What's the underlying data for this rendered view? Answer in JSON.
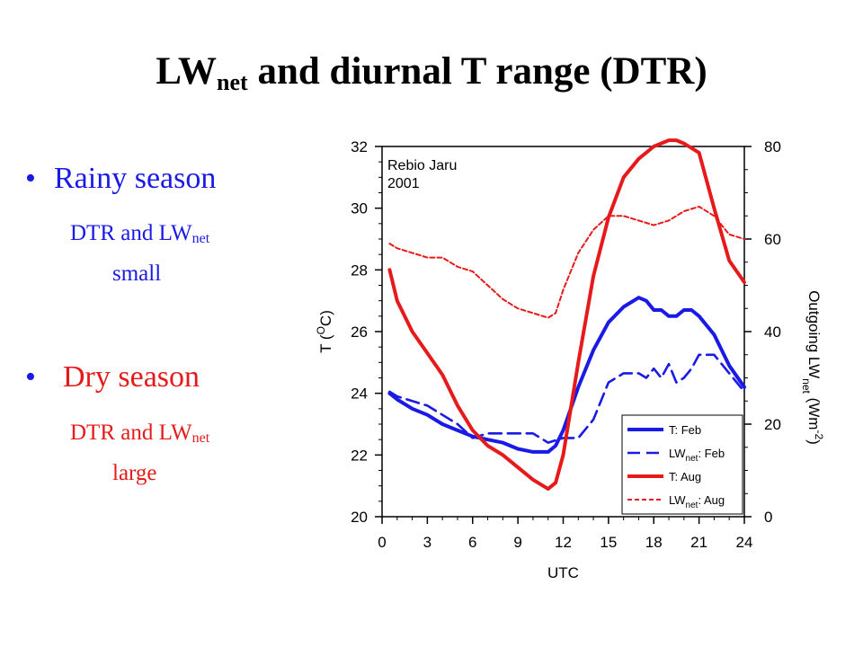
{
  "slide": {
    "title_main": "LW",
    "title_sub": "net",
    "title_rest": " and diurnal T range (DTR)"
  },
  "bullets": [
    {
      "label": "Rainy season",
      "color": "#1a1ae6",
      "desc_pre": "DTR and LW",
      "desc_sub": "net",
      "desc_post": "small"
    },
    {
      "label": "Dry season",
      "color": "#e61a1a",
      "desc_pre": "DTR and LW",
      "desc_sub": "net",
      "desc_post": "large"
    }
  ],
  "chart_data": {
    "type": "line",
    "annotation": [
      "Rebio Jaru",
      "2001"
    ],
    "xlabel": "UTC",
    "ylabel_left": {
      "pre": "T (",
      "sup": "O",
      "post": "C)"
    },
    "ylabel_right": {
      "pre": "Outgoing LW",
      "sub": "net",
      "mid": " (Wm",
      "sup": "-2",
      "post": ")"
    },
    "xlim": [
      0,
      24
    ],
    "xticks": [
      0,
      3,
      6,
      9,
      12,
      15,
      18,
      21,
      24
    ],
    "ylim_left": [
      20,
      32
    ],
    "yticks_left": [
      20,
      22,
      24,
      26,
      28,
      30,
      32
    ],
    "ylim_right": [
      0,
      80
    ],
    "yticks_right": [
      0,
      20,
      40,
      60,
      80
    ],
    "grid": false,
    "legend_position": "bottom-right",
    "series": [
      {
        "name": "T: Feb",
        "legend": {
          "pre": "T: Feb"
        },
        "axis": "left",
        "color": "#1a1ae6",
        "style": "solid",
        "x": [
          0.5,
          1,
          2,
          3,
          4,
          5,
          6,
          7,
          8,
          9,
          10,
          11,
          11.5,
          12,
          13,
          14,
          15,
          16,
          17,
          17.5,
          18,
          18.5,
          19,
          19.5,
          20,
          20.5,
          21,
          22,
          23,
          24
        ],
        "y": [
          24.0,
          23.8,
          23.5,
          23.3,
          23.0,
          22.8,
          22.6,
          22.5,
          22.4,
          22.2,
          22.1,
          22.1,
          22.3,
          22.8,
          24.2,
          25.4,
          26.3,
          26.8,
          27.1,
          27.0,
          26.7,
          26.7,
          26.5,
          26.5,
          26.7,
          26.7,
          26.5,
          25.9,
          24.9,
          24.2
        ]
      },
      {
        "name": "LWnet: Feb",
        "legend": {
          "pre": "LW",
          "sub": "net",
          "post": ": Feb"
        },
        "axis": "right",
        "color": "#1a1ae6",
        "style": "dashed",
        "x": [
          0.5,
          1,
          2,
          3,
          4,
          5,
          6,
          7,
          8,
          9,
          10,
          11,
          12,
          13,
          14,
          15,
          16,
          17,
          17.5,
          18,
          18.5,
          19,
          19.5,
          20,
          20.5,
          21,
          22,
          23,
          24
        ],
        "y": [
          27,
          26,
          25,
          24,
          22,
          20,
          17,
          18,
          18,
          18,
          18,
          16,
          17,
          17,
          21,
          29,
          31,
          31,
          30,
          32,
          30,
          33,
          29,
          30,
          32,
          35,
          35,
          31,
          27
        ]
      },
      {
        "name": "T: Aug",
        "legend": {
          "pre": "T: Aug"
        },
        "axis": "left",
        "color": "#e61a1a",
        "style": "solid",
        "x": [
          0.5,
          1,
          2,
          3,
          4,
          5,
          6,
          7,
          8,
          9,
          10,
          11,
          11.5,
          12,
          13,
          14,
          15,
          16,
          17,
          18,
          19,
          19.5,
          20,
          21,
          22,
          23,
          24
        ],
        "y": [
          28.0,
          27.0,
          26.0,
          25.3,
          24.6,
          23.6,
          22.8,
          22.3,
          22.0,
          21.6,
          21.2,
          20.9,
          21.1,
          22.0,
          25.0,
          27.8,
          29.7,
          31.0,
          31.6,
          32.0,
          32.2,
          32.2,
          32.1,
          31.8,
          30.0,
          28.3,
          27.6
        ]
      },
      {
        "name": "LWnet: Aug",
        "legend": {
          "pre": "LW",
          "sub": "net",
          "post": ": Aug"
        },
        "axis": "right",
        "color": "#e61a1a",
        "style": "dotted",
        "x": [
          0.5,
          1,
          2,
          3,
          4,
          5,
          6,
          7,
          8,
          9,
          10,
          11,
          11.5,
          12,
          13,
          14,
          15,
          16,
          17,
          18,
          19,
          20,
          21,
          22,
          23,
          24
        ],
        "y": [
          59,
          58,
          57,
          56,
          56,
          54,
          53,
          50,
          47,
          45,
          44,
          43,
          44,
          49,
          57,
          62,
          65,
          65,
          64,
          63,
          64,
          66,
          67,
          65,
          61,
          60
        ]
      }
    ]
  }
}
